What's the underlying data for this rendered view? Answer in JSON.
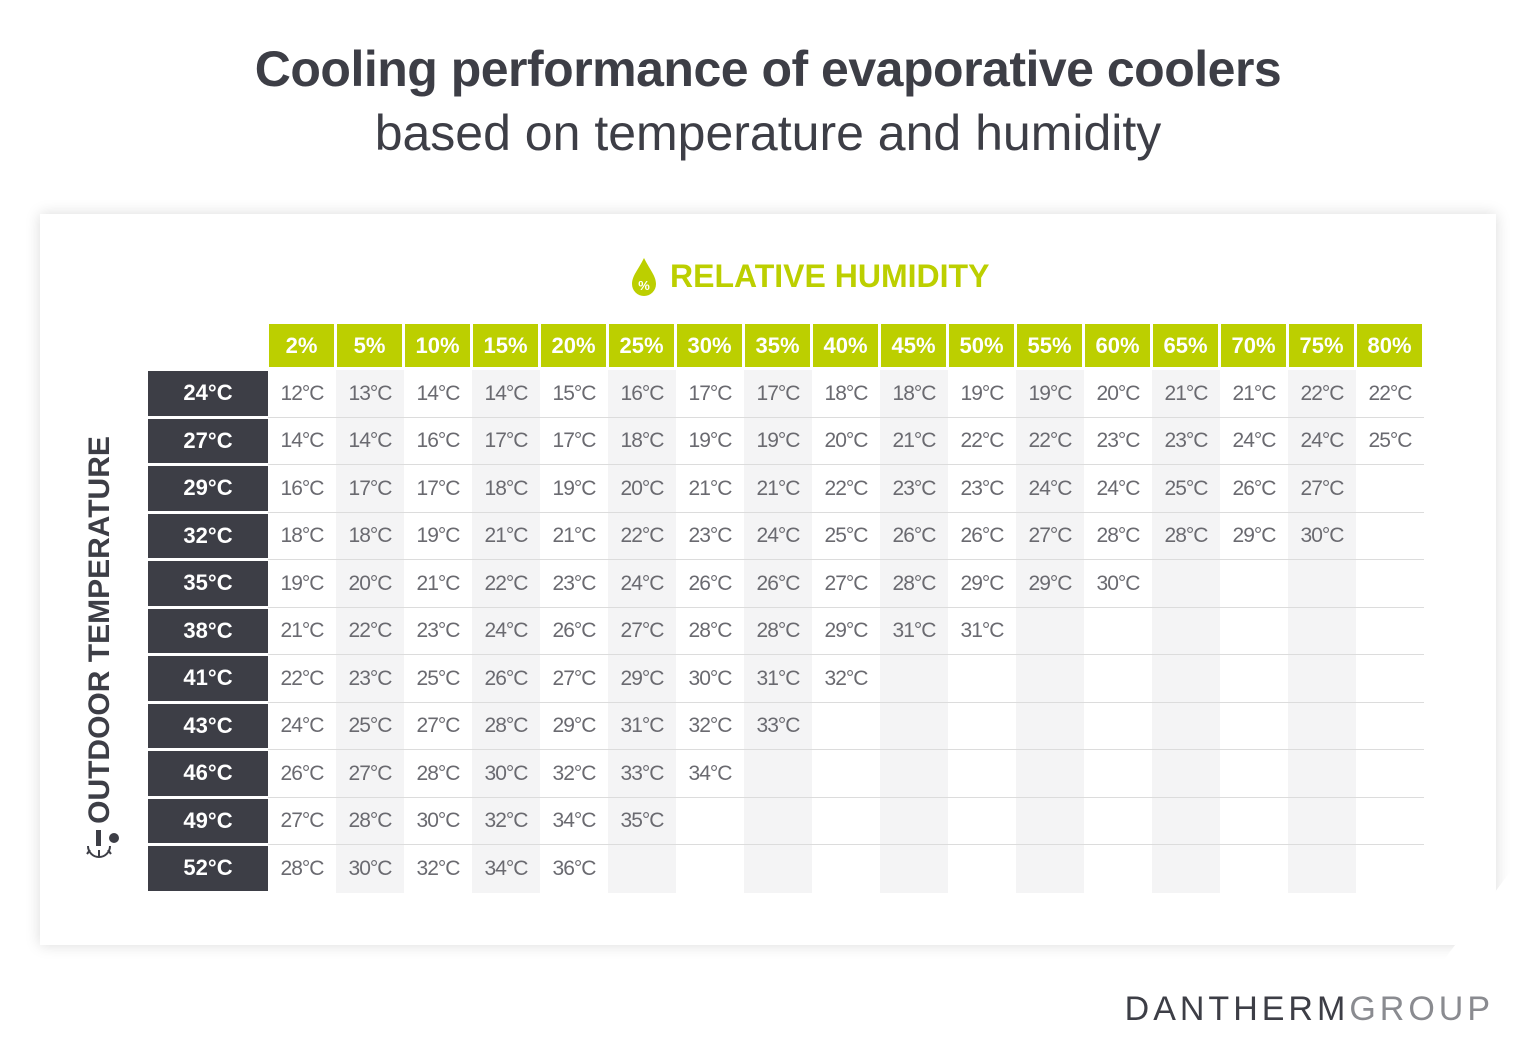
{
  "title": "Cooling performance of evaporative coolers",
  "subtitle": "based on temperature and humidity",
  "colors": {
    "accent": "#bccf00",
    "dark": "#3d3e46",
    "shade": "#f4f4f5"
  },
  "chart_data": {
    "type": "table",
    "column_axis_label": "RELATIVE HUMIDITY",
    "row_axis_label": "OUTDOOR TEMPERATURE",
    "columns": [
      "2%",
      "5%",
      "10%",
      "15%",
      "20%",
      "25%",
      "30%",
      "35%",
      "40%",
      "45%",
      "50%",
      "55%",
      "60%",
      "65%",
      "70%",
      "75%",
      "80%"
    ],
    "rows": [
      {
        "label": "24°C",
        "values": [
          "12°C",
          "13°C",
          "14°C",
          "14°C",
          "15°C",
          "16°C",
          "17°C",
          "17°C",
          "18°C",
          "18°C",
          "19°C",
          "19°C",
          "20°C",
          "21°C",
          "21°C",
          "22°C",
          "22°C"
        ]
      },
      {
        "label": "27°C",
        "values": [
          "14°C",
          "14°C",
          "16°C",
          "17°C",
          "17°C",
          "18°C",
          "19°C",
          "19°C",
          "20°C",
          "21°C",
          "22°C",
          "22°C",
          "23°C",
          "23°C",
          "24°C",
          "24°C",
          "25°C"
        ]
      },
      {
        "label": "29°C",
        "values": [
          "16°C",
          "17°C",
          "17°C",
          "18°C",
          "19°C",
          "20°C",
          "21°C",
          "21°C",
          "22°C",
          "23°C",
          "23°C",
          "24°C",
          "24°C",
          "25°C",
          "26°C",
          "27°C"
        ]
      },
      {
        "label": "32°C",
        "values": [
          "18°C",
          "18°C",
          "19°C",
          "21°C",
          "21°C",
          "22°C",
          "23°C",
          "24°C",
          "25°C",
          "26°C",
          "26°C",
          "27°C",
          "28°C",
          "28°C",
          "29°C",
          "30°C"
        ]
      },
      {
        "label": "35°C",
        "values": [
          "19°C",
          "20°C",
          "21°C",
          "22°C",
          "23°C",
          "24°C",
          "26°C",
          "26°C",
          "27°C",
          "28°C",
          "29°C",
          "29°C",
          "30°C"
        ]
      },
      {
        "label": "38°C",
        "values": [
          "21°C",
          "22°C",
          "23°C",
          "24°C",
          "26°C",
          "27°C",
          "28°C",
          "28°C",
          "29°C",
          "31°C",
          "31°C"
        ]
      },
      {
        "label": "41°C",
        "values": [
          "22°C",
          "23°C",
          "25°C",
          "26°C",
          "27°C",
          "29°C",
          "30°C",
          "31°C",
          "32°C"
        ]
      },
      {
        "label": "43°C",
        "values": [
          "24°C",
          "25°C",
          "27°C",
          "28°C",
          "29°C",
          "31°C",
          "32°C",
          "33°C"
        ]
      },
      {
        "label": "46°C",
        "values": [
          "26°C",
          "27°C",
          "28°C",
          "30°C",
          "32°C",
          "33°C",
          "34°C"
        ]
      },
      {
        "label": "49°C",
        "values": [
          "27°C",
          "28°C",
          "30°C",
          "32°C",
          "34°C",
          "35°C"
        ]
      },
      {
        "label": "52°C",
        "values": [
          "28°C",
          "30°C",
          "32°C",
          "34°C",
          "36°C"
        ]
      }
    ]
  },
  "icons": {
    "humidity": "droplet-percent-icon",
    "temperature": "thermometer-sun-icon"
  },
  "logo": {
    "part1": "DANTHERM",
    "part2": "GROUP"
  }
}
